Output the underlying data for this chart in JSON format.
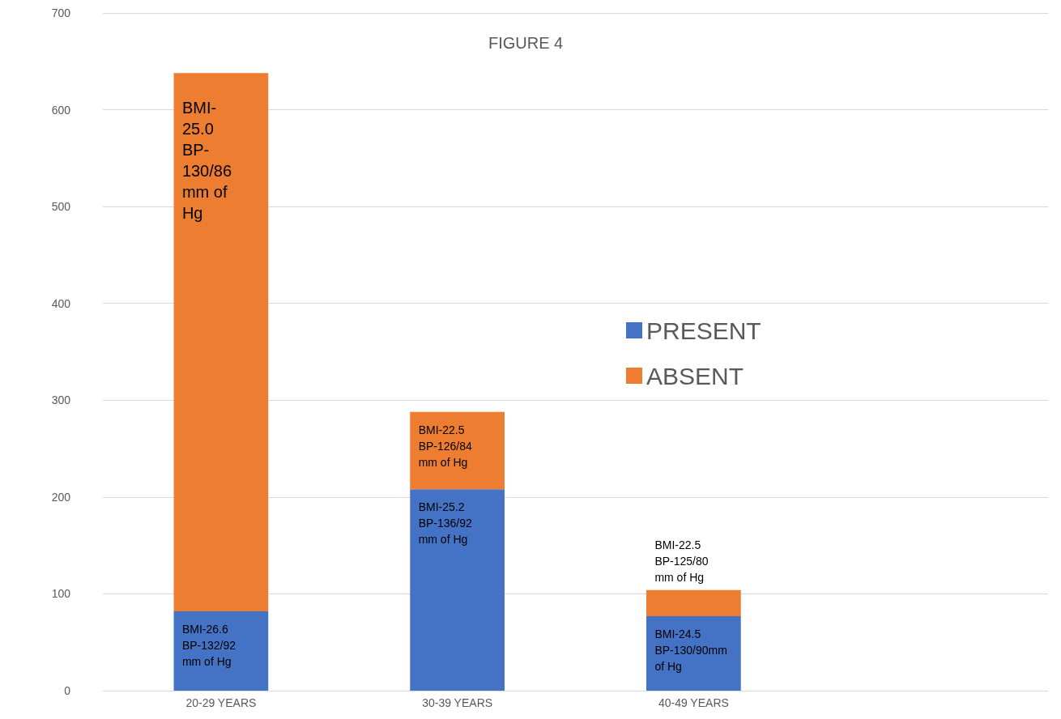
{
  "chart_data": {
    "type": "bar",
    "title": "FIGURE 4",
    "stacked": true,
    "categories": [
      "20-29 YEARS",
      "30-39 YEARS",
      "40-49 YEARS",
      null
    ],
    "series": [
      {
        "name": "PRESENT",
        "color": "#4472c4",
        "values": [
          82,
          208,
          77,
          null
        ]
      },
      {
        "name": "ABSENT",
        "color": "#ed7d31",
        "values": [
          556,
          80,
          27,
          null
        ]
      }
    ],
    "ylim": [
      0,
      700
    ],
    "yticks": [
      0,
      100,
      200,
      300,
      400,
      500,
      600,
      700
    ],
    "grid": "y",
    "legend": "right",
    "annotations": [
      {
        "text": "BMI-26.6\nBP-132/92\nmm of Hg",
        "x": "20-29 YEARS",
        "y": 82
      },
      {
        "text": "BMI-\n25.0\nBP-\n130/86\nmm of\nHg",
        "x": "20-29 YEARS",
        "y": 638
      },
      {
        "text": "BMI-25.2\nBP-136/92\nmm of Hg",
        "x": "30-39 YEARS",
        "y": 208
      },
      {
        "text": "BMI-22.5\nBP-126/84\nmm of Hg",
        "x": "30-39 YEARS",
        "y": 288
      },
      {
        "text": "BMI-22.5\nBP-125/80\nmm of Hg",
        "x": "40-49 YEARS",
        "y": 104
      },
      {
        "text": "BMI-24.5\nBP-130/90mm\nof Hg",
        "x": "40-49 YEARS",
        "y": 77
      }
    ]
  }
}
